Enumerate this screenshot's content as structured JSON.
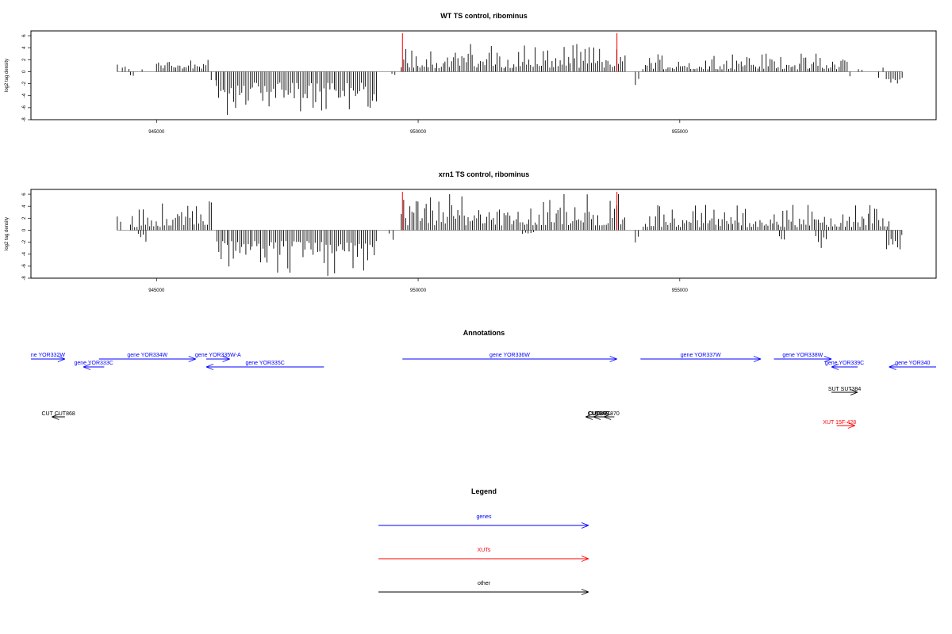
{
  "colors": {
    "gene": "#0000ff",
    "xut": "#ff0000",
    "other": "#000000",
    "signal": "#000000",
    "marker": "#ff0000",
    "baseline": "#999999"
  },
  "chart_data": [
    {
      "type": "bar",
      "title": "WT TS control, ribominus",
      "ylabel": "log2 tag density",
      "xlim": [
        942600,
        959900
      ],
      "ylim": [
        -8,
        6.8
      ],
      "yticks": [
        "-8",
        "-6",
        "-4",
        "-2",
        "0",
        "2",
        "4",
        "6"
      ],
      "xticks": [
        "945000",
        "950000",
        "955000"
      ],
      "markers": [
        949700,
        953800
      ],
      "segments": [
        {
          "start": 944250,
          "end": 944300,
          "min": 0.5,
          "max": 3.2,
          "sign": 1
        },
        {
          "start": 944340,
          "end": 944470,
          "min": 0.2,
          "max": 1.0,
          "sign": 1
        },
        {
          "start": 944500,
          "end": 944560,
          "min": 0.4,
          "max": 1.7,
          "sign": -1
        },
        {
          "start": 944720,
          "end": 944760,
          "min": 0.3,
          "max": 1.0,
          "sign": 1
        },
        {
          "start": 945000,
          "end": 945980,
          "min": 0.5,
          "max": 2.8,
          "sign": 1
        },
        {
          "start": 946050,
          "end": 946130,
          "min": 0.8,
          "max": 2.0,
          "sign": -1
        },
        {
          "start": 946150,
          "end": 949200,
          "min": 1.8,
          "max": 7.2,
          "sign": -1
        },
        {
          "start": 949500,
          "end": 949560,
          "min": 0.3,
          "max": 1.5,
          "sign": -1
        },
        {
          "start": 949680,
          "end": 953950,
          "min": 0.6,
          "max": 4.6,
          "sign": 1
        },
        {
          "start": 954150,
          "end": 954210,
          "min": 1.0,
          "max": 2.8,
          "sign": -1
        },
        {
          "start": 954300,
          "end": 958200,
          "min": 0.4,
          "max": 3.0,
          "sign": 1
        },
        {
          "start": 958250,
          "end": 958300,
          "min": 0.5,
          "max": 1.2,
          "sign": -1
        },
        {
          "start": 958420,
          "end": 958480,
          "min": 0.3,
          "max": 1.6,
          "sign": 1
        },
        {
          "start": 958800,
          "end": 958850,
          "min": 1.0,
          "max": 3.0,
          "sign": -1
        },
        {
          "start": 958880,
          "end": 958930,
          "min": 0.3,
          "max": 1.0,
          "sign": 1
        },
        {
          "start": 958950,
          "end": 959250,
          "min": 0.5,
          "max": 2.6,
          "sign": -1
        }
      ]
    },
    {
      "type": "bar",
      "title": "xrn1 TS control, ribominus",
      "ylabel": "log2 tag density",
      "xlim": [
        942600,
        959900
      ],
      "ylim": [
        -8,
        6.8
      ],
      "yticks": [
        "-8",
        "-6",
        "-4",
        "-2",
        "0",
        "2",
        "4",
        "6"
      ],
      "xticks": [
        "945000",
        "950000",
        "955000"
      ],
      "markers": [
        949700,
        953800
      ],
      "segments": [
        {
          "start": 944250,
          "end": 944310,
          "min": 0.5,
          "max": 3.2,
          "sign": 1
        },
        {
          "start": 944500,
          "end": 946050,
          "min": 0.5,
          "max": 4.8,
          "sign": 1
        },
        {
          "start": 944650,
          "end": 944800,
          "min": 0.5,
          "max": 2.8,
          "sign": -1
        },
        {
          "start": 946150,
          "end": 949200,
          "min": 1.8,
          "max": 7.6,
          "sign": -1
        },
        {
          "start": 949450,
          "end": 949520,
          "min": 0.5,
          "max": 2.0,
          "sign": -1
        },
        {
          "start": 949680,
          "end": 953950,
          "min": 0.8,
          "max": 6.0,
          "sign": 1
        },
        {
          "start": 952000,
          "end": 952200,
          "min": 0.3,
          "max": 1.2,
          "sign": -1
        },
        {
          "start": 954150,
          "end": 954210,
          "min": 1.0,
          "max": 2.8,
          "sign": -1
        },
        {
          "start": 954300,
          "end": 959000,
          "min": 0.5,
          "max": 4.2,
          "sign": 1
        },
        {
          "start": 956900,
          "end": 957000,
          "min": 1.0,
          "max": 2.8,
          "sign": -1
        },
        {
          "start": 957600,
          "end": 957800,
          "min": 1.0,
          "max": 3.8,
          "sign": -1
        },
        {
          "start": 958950,
          "end": 959250,
          "min": 0.8,
          "max": 3.2,
          "sign": -1
        }
      ]
    }
  ],
  "annotations": {
    "title": "Annotations",
    "genes": [
      {
        "label": "ne YOR332W",
        "from": 942600,
        "to": 943250,
        "row": 0
      },
      {
        "label": "gene YOR333C",
        "from": 944000,
        "to": 943600,
        "row": 1
      },
      {
        "label": "gene YOR334W",
        "from": 943900,
        "to": 945750,
        "row": 0
      },
      {
        "label": "gene YOR335W-A",
        "from": 945950,
        "to": 946400,
        "row": 0
      },
      {
        "label": "gene YOR335C",
        "from": 948200,
        "to": 945950,
        "row": 1
      },
      {
        "label": "gene YOR336W",
        "from": 949700,
        "to": 953800,
        "row": 0
      },
      {
        "label": "gene YOR337W",
        "from": 954250,
        "to": 956550,
        "row": 0
      },
      {
        "label": "gene YOR338W",
        "from": 956800,
        "to": 957900,
        "row": 0
      },
      {
        "label": "gene YOR339C",
        "from": 958400,
        "to": 957900,
        "row": 1
      },
      {
        "label": "gene YOR340",
        "from": 959900,
        "to": 959000,
        "row": 1
      }
    ],
    "others": [
      {
        "label": "SUT SUT384",
        "from": 957900,
        "to": 958400,
        "row": 0
      },
      {
        "label": "CUT CUT868",
        "from": 943250,
        "to": 943000,
        "row": 1
      },
      {
        "label": "CUT",
        "from": 953500,
        "to": 953200,
        "row": 1
      },
      {
        "label": "CUT",
        "from": 953650,
        "to": 953350,
        "row": 1
      },
      {
        "label": "CUT870",
        "from": 953750,
        "to": 953550,
        "row": 1
      }
    ],
    "others_bold": [
      {
        "label": "CUT869",
        "x": 953450
      }
    ],
    "xuts": [
      {
        "label": "XUT 15F-428",
        "from": 958000,
        "to": 958350
      }
    ]
  },
  "legend": {
    "title": "Legend",
    "items": [
      {
        "label": "genes",
        "color": "#0000ff"
      },
      {
        "label": "XUTs",
        "color": "#ff0000"
      },
      {
        "label": "other",
        "color": "#000000"
      }
    ]
  }
}
